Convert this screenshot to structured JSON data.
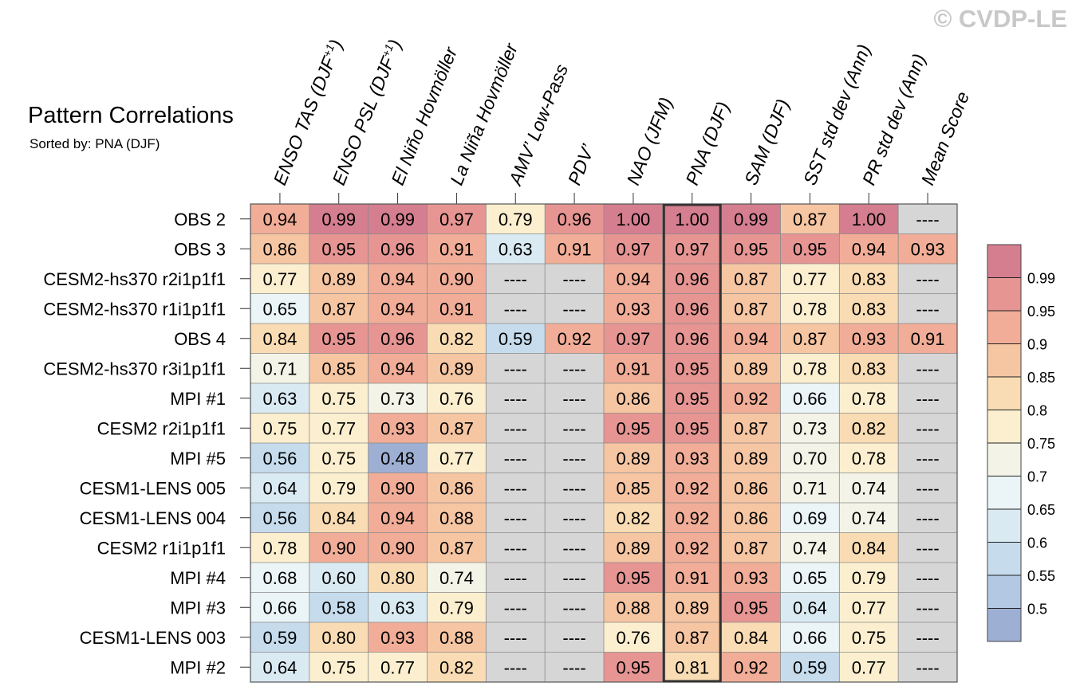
{
  "watermark": "© CVDP-LE",
  "chart_data": {
    "type": "heatmap",
    "title": "Pattern Correlations",
    "subtitle": "Sorted by: PNA (DJF)",
    "highlighted_column": "PNA (DJF)",
    "columns": [
      {
        "label": "ENSO TAS (DJF",
        "sup": "+1",
        "suffix": ")"
      },
      {
        "label": "ENSO PSL (DJF",
        "sup": "+1",
        "suffix": ")"
      },
      {
        "label": "El Niño Hovmöller",
        "sup": "",
        "suffix": ""
      },
      {
        "label": "La Niña Hovmöller",
        "sup": "",
        "suffix": ""
      },
      {
        "label": "AMV’ Low-Pass",
        "sup": "",
        "suffix": ""
      },
      {
        "label": "PDV’",
        "sup": "",
        "suffix": ""
      },
      {
        "label": "NAO (JFM)",
        "sup": "",
        "suffix": ""
      },
      {
        "label": "PNA (DJF)",
        "sup": "",
        "suffix": ""
      },
      {
        "label": "SAM (DJF)",
        "sup": "",
        "suffix": ""
      },
      {
        "label": "SST std dev (Ann)",
        "sup": "",
        "suffix": ""
      },
      {
        "label": "PR std dev (Ann)",
        "sup": "",
        "suffix": ""
      },
      {
        "label": "Mean Score",
        "sup": "",
        "suffix": ""
      }
    ],
    "rows": [
      {
        "name": "OBS 2",
        "values": [
          0.94,
          0.99,
          0.99,
          0.97,
          0.79,
          0.96,
          1.0,
          1.0,
          0.99,
          0.87,
          1.0,
          null
        ]
      },
      {
        "name": "OBS 3",
        "values": [
          0.86,
          0.95,
          0.96,
          0.91,
          0.63,
          0.91,
          0.97,
          0.97,
          0.95,
          0.95,
          0.94,
          0.93
        ]
      },
      {
        "name": "CESM2-hs370 r2i1p1f1",
        "values": [
          0.77,
          0.89,
          0.94,
          0.9,
          null,
          null,
          0.94,
          0.96,
          0.87,
          0.77,
          0.83,
          null
        ]
      },
      {
        "name": "CESM2-hs370 r1i1p1f1",
        "values": [
          0.65,
          0.87,
          0.94,
          0.91,
          null,
          null,
          0.93,
          0.96,
          0.87,
          0.78,
          0.83,
          null
        ]
      },
      {
        "name": "OBS 4",
        "values": [
          0.84,
          0.95,
          0.96,
          0.82,
          0.59,
          0.92,
          0.97,
          0.96,
          0.94,
          0.87,
          0.93,
          0.91
        ]
      },
      {
        "name": "CESM2-hs370 r3i1p1f1",
        "values": [
          0.71,
          0.85,
          0.94,
          0.89,
          null,
          null,
          0.91,
          0.95,
          0.89,
          0.78,
          0.83,
          null
        ]
      },
      {
        "name": "MPI #1",
        "values": [
          0.63,
          0.75,
          0.73,
          0.76,
          null,
          null,
          0.86,
          0.95,
          0.92,
          0.66,
          0.78,
          null
        ]
      },
      {
        "name": "CESM2 r2i1p1f1",
        "values": [
          0.75,
          0.77,
          0.93,
          0.87,
          null,
          null,
          0.95,
          0.95,
          0.87,
          0.73,
          0.82,
          null
        ]
      },
      {
        "name": "MPI #5",
        "values": [
          0.56,
          0.75,
          0.48,
          0.77,
          null,
          null,
          0.89,
          0.93,
          0.89,
          0.7,
          0.78,
          null
        ]
      },
      {
        "name": "CESM1-LENS 005",
        "values": [
          0.64,
          0.79,
          0.9,
          0.86,
          null,
          null,
          0.85,
          0.92,
          0.86,
          0.71,
          0.74,
          null
        ]
      },
      {
        "name": "CESM1-LENS 004",
        "values": [
          0.56,
          0.84,
          0.94,
          0.88,
          null,
          null,
          0.82,
          0.92,
          0.86,
          0.69,
          0.74,
          null
        ]
      },
      {
        "name": "CESM2 r1i1p1f1",
        "values": [
          0.78,
          0.9,
          0.9,
          0.87,
          null,
          null,
          0.89,
          0.92,
          0.87,
          0.74,
          0.84,
          null
        ]
      },
      {
        "name": "MPI #4",
        "values": [
          0.68,
          0.6,
          0.8,
          0.74,
          null,
          null,
          0.95,
          0.91,
          0.93,
          0.65,
          0.79,
          null
        ]
      },
      {
        "name": "MPI #3",
        "values": [
          0.66,
          0.58,
          0.63,
          0.79,
          null,
          null,
          0.88,
          0.89,
          0.95,
          0.64,
          0.77,
          null
        ]
      },
      {
        "name": "CESM1-LENS 003",
        "values": [
          0.59,
          0.8,
          0.93,
          0.88,
          null,
          null,
          0.76,
          0.87,
          0.84,
          0.66,
          0.75,
          null
        ]
      },
      {
        "name": "MPI #2",
        "values": [
          0.64,
          0.75,
          0.77,
          0.82,
          null,
          null,
          0.95,
          0.81,
          0.92,
          0.59,
          0.77,
          null
        ]
      }
    ],
    "missing_label": "----",
    "missing_color": "#d6d6d6",
    "colorbar": {
      "levels": [
        0.5,
        0.55,
        0.6,
        0.65,
        0.7,
        0.75,
        0.8,
        0.85,
        0.9,
        0.95,
        0.99
      ],
      "labels": [
        "0.5",
        "0.55",
        "0.6",
        "0.65",
        "0.7",
        "0.75",
        "0.8",
        "0.85",
        "0.9",
        "0.95",
        "0.99"
      ],
      "colors": [
        "#9eafd4",
        "#b3c8e2",
        "#c6dced",
        "#daeaf3",
        "#ebf4f6",
        "#f4f3e7",
        "#fbefcf",
        "#f9dcb3",
        "#f6c5a2",
        "#f1ad97",
        "#e69593",
        "#d47e8f"
      ]
    }
  }
}
